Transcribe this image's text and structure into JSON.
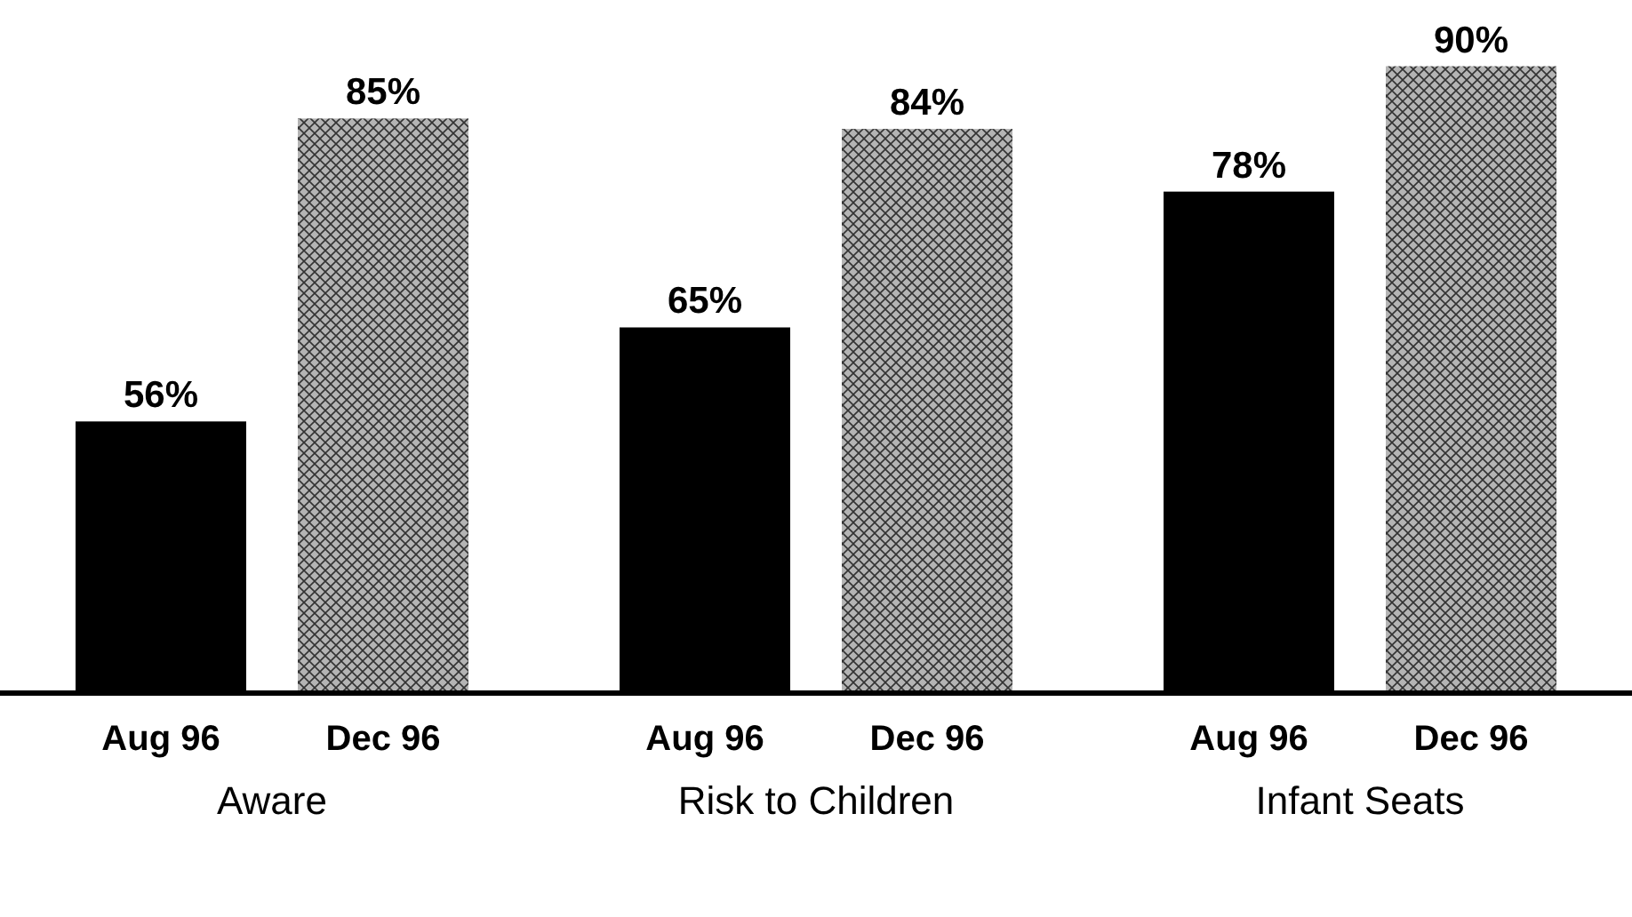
{
  "chart_data": {
    "type": "bar",
    "categories": [
      "Aware",
      "Risk to Children",
      "Infant Seats"
    ],
    "series": [
      {
        "name": "Aug 96",
        "color": "#000000",
        "values": [
          56,
          65,
          78
        ],
        "value_labels": [
          "56%",
          "65%",
          "78%"
        ]
      },
      {
        "name": "Dec 96",
        "color": "#b4b4b4",
        "values": [
          85,
          84,
          90
        ],
        "value_labels": [
          "85%",
          "84%",
          "90%"
        ]
      }
    ],
    "ylim": [
      30,
      96
    ]
  }
}
